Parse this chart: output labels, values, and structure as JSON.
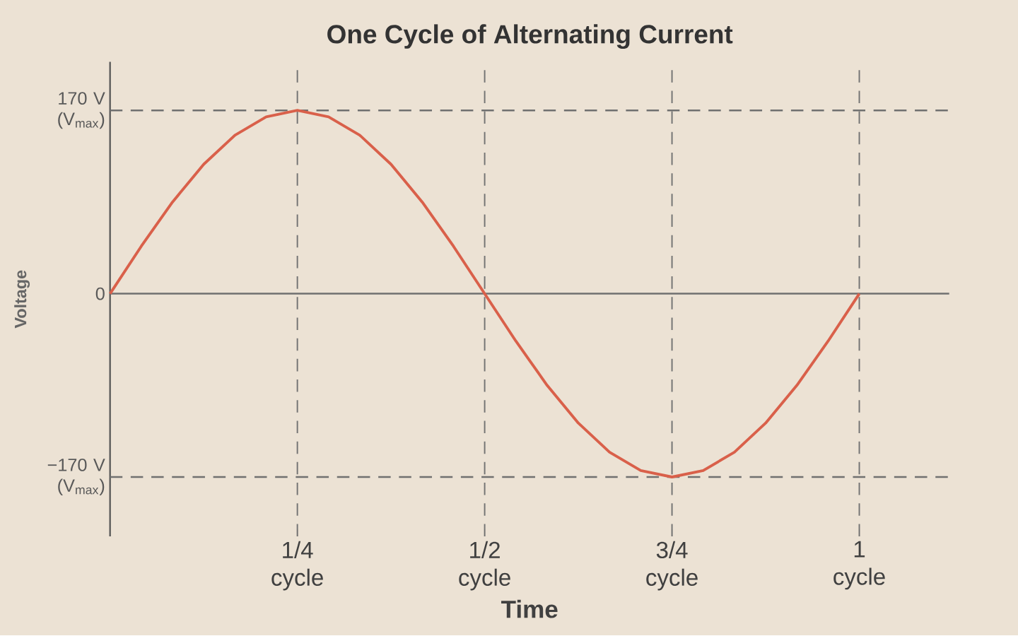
{
  "chart_data": {
    "type": "line",
    "title": "One Cycle of Alternating Current",
    "xlabel": "Time",
    "ylabel": "Voltage",
    "categories": [
      null,
      null,
      null,
      null,
      null,
      null,
      "1/4 cycle",
      null,
      null,
      null,
      null,
      null,
      "1/2 cycle",
      null,
      null,
      null,
      null,
      null,
      "3/4 cycle",
      null,
      null,
      null,
      null,
      null,
      "1 cycle"
    ],
    "series": [
      {
        "color": "#d9604a",
        "values": [
          0,
          44,
          85,
          120,
          147,
          164,
          170,
          164,
          147,
          120,
          85,
          44,
          0,
          -44,
          -85,
          -120,
          -147,
          -164,
          -170,
          -164,
          -147,
          -120,
          -85,
          -44,
          0
        ]
      }
    ],
    "ylim": [
      -225,
      215
    ],
    "yticks": [
      {
        "value": 170,
        "label": "170 V (V$_{max}$)"
      },
      0,
      {
        "value": -170,
        "label": "−170 V (V$_{max}$)"
      }
    ],
    "ref_lines": [
      {
        "axis": "y",
        "value": 0,
        "color": "#707070",
        "line_style": "solid"
      },
      {
        "axis": "y",
        "value": 170,
        "color": "#707070",
        "line_style": "dashed"
      },
      {
        "axis": "y",
        "value": -170,
        "color": "#707070",
        "line_style": "dashed"
      }
    ],
    "grid": "x",
    "marker": "none",
    "line_style": "solid"
  }
}
